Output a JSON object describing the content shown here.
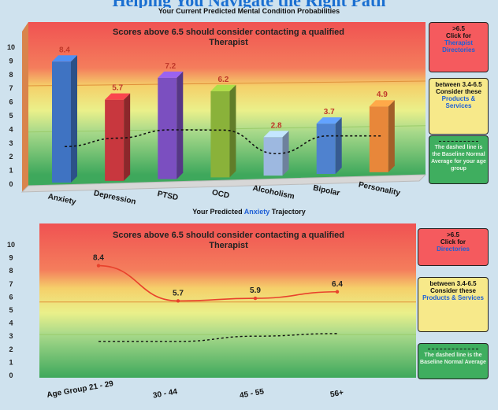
{
  "banner": "Helping You Navigate the Right Path",
  "chart_data": [
    {
      "type": "bar",
      "title": "Your Current Predicted Mental Condition Probabilities",
      "subtitle": "Scores above 6.5 should consider contacting a qualified Therapist",
      "categories": [
        "Anxiety",
        "Depression",
        "PTSD",
        "OCD",
        "Alcoholism",
        "Bipolar",
        "Personality"
      ],
      "values": [
        8.4,
        5.7,
        7.2,
        6.2,
        2.8,
        3.7,
        4.9
      ],
      "value_labels": [
        "8.4",
        "5.7",
        "7.2",
        "6.2",
        "2.8",
        "3.7",
        "4.9"
      ],
      "colors": [
        "#3f73c2",
        "#c8373e",
        "#7b4fc0",
        "#8ab23a",
        "#9db8e0",
        "#4f82cf",
        "#e8873a"
      ],
      "baseline": [
        2.5,
        3.0,
        3.5,
        3.4,
        1.6,
        2.8,
        2.7
      ],
      "ylim": [
        0,
        10
      ],
      "yticks": [
        "0",
        "1",
        "2",
        "3",
        "4",
        "5",
        "6",
        "7",
        "8",
        "9",
        "10"
      ],
      "zones": [
        {
          "from": 6.5,
          "to": 10.6,
          "color": "red"
        },
        {
          "from": 3.4,
          "to": 6.5,
          "color": "yellow"
        },
        {
          "from": 0,
          "to": 3.4,
          "color": "green"
        }
      ],
      "grid": false
    },
    {
      "type": "line",
      "title_prefix": "Your Predicted ",
      "title_highlight": "Anxiety",
      "title_suffix": " Trajectory",
      "subtitle": "Scores above 6.5 should consider contacting a qualified Therapist",
      "categories": [
        "Age Group 21 - 29",
        "30 - 44",
        "45 - 55",
        "56+"
      ],
      "values": [
        8.4,
        5.7,
        5.9,
        6.4
      ],
      "value_labels": [
        "8.4",
        "5.7",
        "5.9",
        "6.4"
      ],
      "baseline": [
        2.6,
        2.6,
        3.0,
        3.2
      ],
      "ylim": [
        0,
        10
      ],
      "yticks": [
        "0",
        "1",
        "2",
        "3",
        "4",
        "5",
        "6",
        "7",
        "8",
        "9",
        "10"
      ],
      "line_color": "#e8412c",
      "grid": false
    }
  ],
  "top_side": {
    "red_line1": ">6.5",
    "red_line2": "Click for",
    "red_link": "Therapist Directories",
    "yellow_line1": "between 3.4-6.5",
    "yellow_line2": "Consider these",
    "yellow_link": "Products & Services",
    "green_text": "The dashed line is the Baseline Normal Average for your age group"
  },
  "bottom_side": {
    "red_line1": ">6.5",
    "red_line2": "Click for",
    "red_link": "Directories",
    "yellow_line1": "between 3.4-6.5",
    "yellow_line2": "Consider these",
    "yellow_link": "Products & Services",
    "green_text": "The dashed line is the Baseline Normal Average"
  }
}
